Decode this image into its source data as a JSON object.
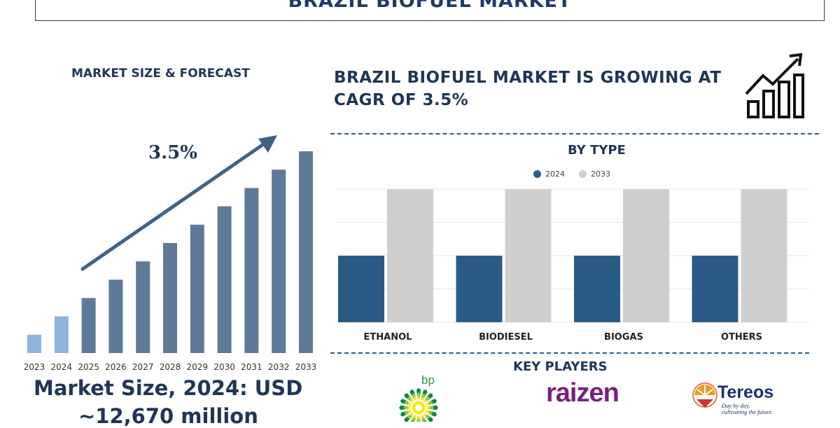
{
  "title": "BRAZIL BIOFUEL MARKET",
  "left_panel": {
    "heading": "MARKET SIZE & FORECAST",
    "cagr_label": "3.5%",
    "market_size_line1": "Market Size, 2024: USD",
    "market_size_line2": "~12,670 million"
  },
  "right_panel": {
    "headline_line1": "BRAZIL BIOFUEL MARKET IS GROWING AT",
    "headline_line2": "CAGR OF 3.5%",
    "growth_icon": "bar-growth-arrow-icon",
    "type_heading": "BY TYPE",
    "key_players_heading": "KEY PLAYERS"
  },
  "key_players": {
    "bp": {
      "name": "bp",
      "icon": "bp-helios-logo"
    },
    "raizen": {
      "name": "raizen"
    },
    "tereos": {
      "name": "Tereos",
      "tagline1": "Day by day,",
      "tagline2": "cultivating the future.",
      "icon": "tereos-sun-logo"
    }
  },
  "colors": {
    "navy": "#1f3655",
    "bar_dark": "#5d7a98",
    "bar_light": "#8fb4de",
    "series_2024": "#2a5b86",
    "series_2033": "#cfcfcf"
  },
  "chart_data": [
    {
      "type": "bar",
      "categories": [
        "2023",
        "2024",
        "2025",
        "2026",
        "2027",
        "2028",
        "2029",
        "2030",
        "2031",
        "2032",
        "2033"
      ],
      "values": [
        1,
        2,
        3,
        4,
        5,
        6,
        7,
        8,
        9,
        10,
        11
      ],
      "highlight": [
        "2023",
        "2024"
      ],
      "ylim": [
        0,
        11
      ],
      "annotation": "3.5%",
      "grid": false
    },
    {
      "type": "bar",
      "title": "BY TYPE",
      "categories": [
        "ETHANOL",
        "BIODIESEL",
        "BIOGAS",
        "OTHERS"
      ],
      "series": [
        {
          "name": "2024",
          "values": [
            50,
            50,
            50,
            50
          ]
        },
        {
          "name": "2033",
          "values": [
            100,
            100,
            100,
            100
          ]
        }
      ],
      "ylim": [
        0,
        100
      ],
      "legend": "top-center",
      "grid": true
    }
  ]
}
